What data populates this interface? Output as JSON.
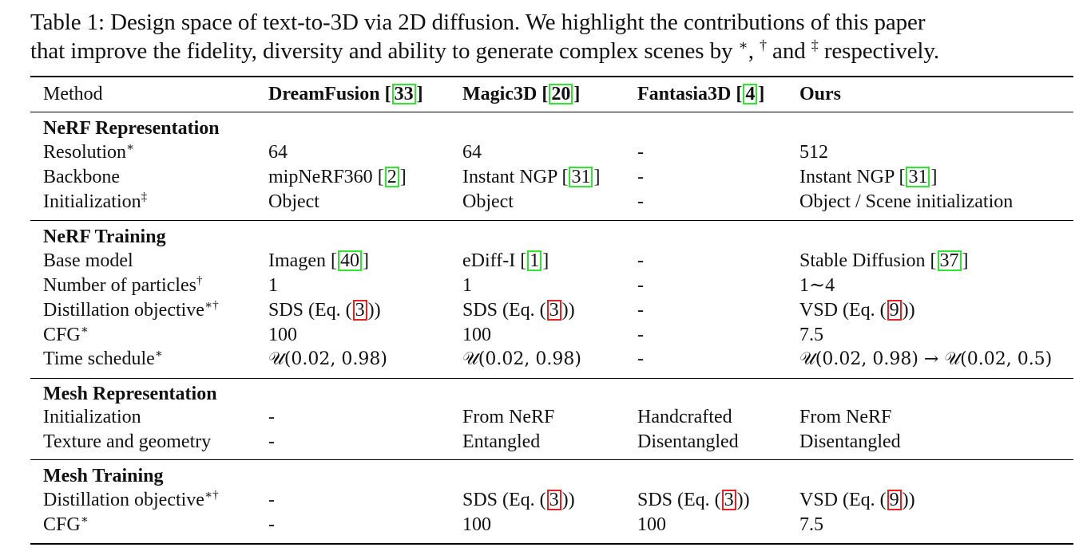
{
  "caption": {
    "line1": "Table 1: Design space of text-to-3D via 2D diffusion. We highlight the contributions of this paper",
    "line2_a": "that improve the fidelity, diversity and ability to generate complex scenes by ",
    "mark1": "∗",
    "sep1": ", ",
    "mark2": "†",
    "sep2": " and ",
    "mark3": "‡",
    "line2_b": " respectively."
  },
  "header": {
    "method": "Method",
    "dreamfusion": "DreamFusion",
    "dreamfusion_ref": "33",
    "magic3d": "Magic3D",
    "magic3d_ref": "20",
    "fantasia3d": "Fantasia3D",
    "fantasia3d_ref": "4",
    "ours": "Ours"
  },
  "sections": {
    "nerf_rep": "NeRF Representation",
    "nerf_train": "NeRF Training",
    "mesh_rep": "Mesh Representation",
    "mesh_train": "Mesh Training"
  },
  "common": {
    "dash": "-",
    "open_bracket": "[",
    "close_bracket": "]",
    "sds_a": "SDS (Eq. (",
    "vsd_a": "VSD (Eq. (",
    "eq_close": "))",
    "eq3": "3",
    "eq9": "9",
    "star": "∗",
    "dagger": "†",
    "ddagger": "‡",
    "stardagger": "∗†"
  },
  "rows": {
    "resolution": {
      "label": "Resolution",
      "df": "64",
      "m3d": "64",
      "f3d": "-",
      "ours": "512"
    },
    "backbone": {
      "label": "Backbone",
      "df": "mipNeRF360",
      "df_ref": "2",
      "m3d": "Instant NGP",
      "m3d_ref": "31",
      "f3d": "-",
      "ours": "Instant NGP",
      "ours_ref": "31"
    },
    "initialization": {
      "label": "Initialization",
      "df": "Object",
      "m3d": "Object",
      "f3d": "-",
      "ours": "Object / Scene initialization"
    },
    "base_model": {
      "label": "Base model",
      "df": "Imagen",
      "df_ref": "40",
      "m3d": "eDiff-I",
      "m3d_ref": "1",
      "f3d": "-",
      "ours": "Stable Diffusion",
      "ours_ref": "37"
    },
    "particles": {
      "label": "Number of particles",
      "df": "1",
      "m3d": "1",
      "f3d": "-",
      "ours": "1∼4"
    },
    "distill": {
      "label": "Distillation objective"
    },
    "cfg": {
      "label": "CFG",
      "df": "100",
      "m3d": "100",
      "f3d": "-",
      "ours": "7.5"
    },
    "time_schedule": {
      "label": "Time schedule",
      "df": "𝒰(0.02, 0.98)",
      "m3d": "𝒰(0.02, 0.98)",
      "f3d": "-",
      "ours": "𝒰(0.02, 0.98) → 𝒰(0.02, 0.5)"
    },
    "mesh_init": {
      "label": "Initialization",
      "df": "-",
      "m3d": "From NeRF",
      "f3d": "Handcrafted",
      "ours": "From NeRF"
    },
    "texture": {
      "label": "Texture and geometry",
      "df": "-",
      "m3d": "Entangled",
      "f3d": "Disentangled",
      "ours": "Disentangled"
    },
    "mesh_distill": {
      "label": "Distillation objective",
      "df": "-"
    },
    "mesh_cfg": {
      "label": "CFG",
      "df": "-",
      "m3d": "100",
      "f3d": "100",
      "ours": "7.5"
    }
  }
}
